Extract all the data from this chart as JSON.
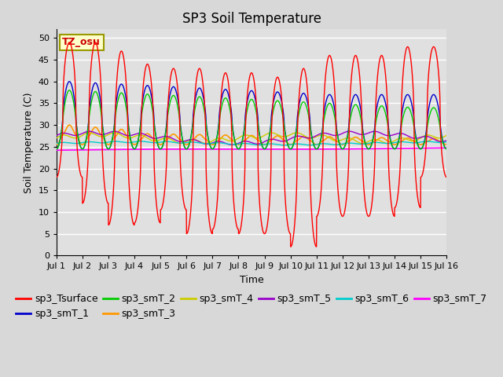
{
  "title": "SP3 Soil Temperature",
  "xlabel": "Time",
  "ylabel": "Soil Temperature (C)",
  "tz_label": "TZ_osu",
  "ylim": [
    0,
    52
  ],
  "yticks": [
    0,
    5,
    10,
    15,
    20,
    25,
    30,
    35,
    40,
    45,
    50
  ],
  "x_labels": [
    "Jul 1",
    "Jul 2",
    "Jul 3",
    "Jul 4",
    "Jul 5",
    "Jul 6",
    "Jul 7",
    "Jul 8",
    "Jul 9",
    "Jul 10",
    "Jul 11",
    "Jul 12",
    "Jul 13",
    "Jul 14",
    "Jul 15",
    "Jul 16"
  ],
  "series_colors": {
    "sp3_Tsurface": "#ff0000",
    "sp3_smT_1": "#0000cc",
    "sp3_smT_2": "#00cc00",
    "sp3_smT_3": "#ff9900",
    "sp3_smT_4": "#cccc00",
    "sp3_smT_5": "#9900cc",
    "sp3_smT_6": "#00cccc",
    "sp3_smT_7": "#ff00ff"
  },
  "background_color": "#e0e0e0",
  "fig_facecolor": "#d8d8d8",
  "title_fontsize": 12,
  "axis_fontsize": 9,
  "legend_fontsize": 9,
  "surf_peaks": [
    49,
    49,
    47,
    44,
    43,
    43,
    42,
    42,
    41,
    43,
    46,
    46,
    46,
    48,
    48
  ],
  "surf_troughs": [
    18,
    12,
    7,
    7.5,
    10.5,
    5,
    6,
    5,
    5,
    2,
    9,
    9,
    9,
    11,
    18
  ]
}
